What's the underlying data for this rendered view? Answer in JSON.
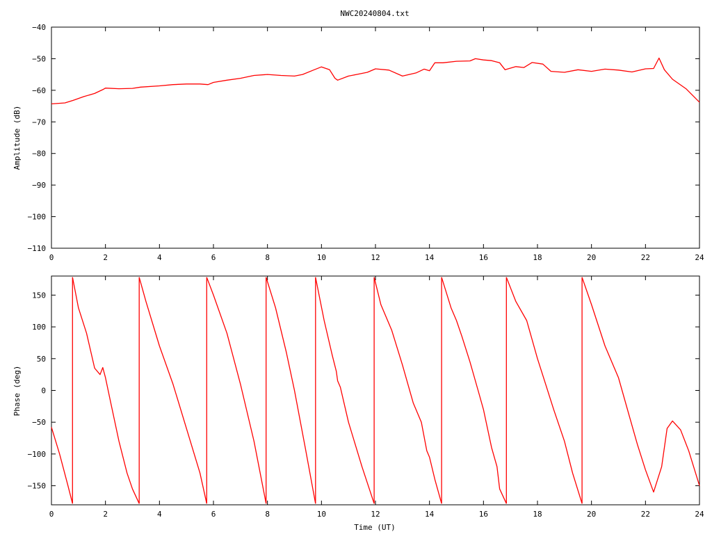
{
  "page": {
    "title": "NWC20240804.txt"
  },
  "chart_data": [
    {
      "type": "line",
      "title": "NWC20240804.txt",
      "xlabel": "",
      "ylabel": "Amplitude (dB)",
      "xlim": [
        0,
        24
      ],
      "ylim": [
        -110,
        -40
      ],
      "xticks": [
        0,
        2,
        4,
        6,
        8,
        10,
        12,
        14,
        16,
        18,
        20,
        22,
        24
      ],
      "yticks": [
        -40,
        -50,
        -60,
        -70,
        -80,
        -90,
        -100,
        -110
      ],
      "ytick_labels": [
        "−40",
        "−50",
        "−60",
        "−70",
        "−80",
        "−90",
        "−100",
        "−110"
      ],
      "grid": false,
      "color": "#ff0000",
      "series": [
        {
          "x": [
            0,
            0.5,
            0.8,
            1.2,
            1.6,
            1.9,
            2.0,
            2.5,
            3.0,
            3.3,
            4.0,
            4.5,
            5.0,
            5.5,
            5.8,
            6.0,
            6.5,
            7.0,
            7.5,
            8.0,
            8.5,
            9.0,
            9.3,
            9.7,
            10.0,
            10.3,
            10.5,
            10.6,
            11.0,
            11.3,
            11.7,
            12.0,
            12.5,
            13.0,
            13.5,
            13.8,
            14.0,
            14.2,
            14.5,
            15.0,
            15.5,
            15.7,
            16.0,
            16.3,
            16.6,
            16.8,
            17.2,
            17.5,
            17.8,
            18.2,
            18.5,
            19.0,
            19.5,
            20.0,
            20.5,
            21.0,
            21.5,
            22.0,
            22.3,
            22.5,
            22.7,
            23.0,
            23.5,
            24.0
          ],
          "y": [
            -64.3,
            -64.0,
            -63.2,
            -62.0,
            -61.0,
            -59.8,
            -59.3,
            -59.5,
            -59.4,
            -59.0,
            -58.6,
            -58.2,
            -58.0,
            -58.0,
            -58.2,
            -57.5,
            -56.8,
            -56.2,
            -55.3,
            -55.0,
            -55.3,
            -55.5,
            -55.0,
            -53.6,
            -52.6,
            -53.5,
            -56.2,
            -56.8,
            -55.5,
            -55.0,
            -54.3,
            -53.2,
            -53.6,
            -55.5,
            -54.5,
            -53.3,
            -53.8,
            -51.3,
            -51.3,
            -50.8,
            -50.7,
            -50.0,
            -50.4,
            -50.6,
            -51.3,
            -53.5,
            -52.5,
            -52.8,
            -51.2,
            -51.7,
            -54.0,
            -54.3,
            -53.5,
            -54.0,
            -53.3,
            -53.6,
            -54.2,
            -53.2,
            -53.1,
            -49.8,
            -53.5,
            -56.5,
            -59.5,
            -63.8
          ]
        }
      ]
    },
    {
      "type": "line",
      "title": "",
      "xlabel": "Time (UT)",
      "ylabel": "Phase (deg)",
      "xlim": [
        0,
        24
      ],
      "ylim": [
        -180,
        180
      ],
      "xticks": [
        0,
        2,
        4,
        6,
        8,
        10,
        12,
        14,
        16,
        18,
        20,
        22,
        24
      ],
      "yticks": [
        150,
        100,
        50,
        0,
        -50,
        -100,
        -150
      ],
      "ytick_labels": [
        "150",
        "100",
        "50",
        "0",
        "−50",
        "−100",
        "−150"
      ],
      "grid": false,
      "color": "#ff0000",
      "segments": [
        {
          "x": [
            0,
            0.3,
            0.6,
            0.78
          ],
          "y": [
            -58,
            -100,
            -148,
            -178
          ]
        },
        {
          "x": [
            0.78,
            0.78
          ],
          "y": [
            -178,
            178
          ]
        },
        {
          "x": [
            0.78,
            1.0,
            1.3,
            1.6,
            1.8,
            1.9,
            2.0,
            2.2,
            2.5,
            2.8,
            3.0,
            3.25
          ],
          "y": [
            178,
            130,
            90,
            35,
            25,
            36,
            20,
            -20,
            -80,
            -130,
            -155,
            -178
          ]
        },
        {
          "x": [
            3.25,
            3.25
          ],
          "y": [
            -178,
            178
          ]
        },
        {
          "x": [
            3.25,
            3.5,
            4.0,
            4.5,
            5.0,
            5.5,
            5.75
          ],
          "y": [
            178,
            140,
            70,
            10,
            -60,
            -130,
            -178
          ]
        },
        {
          "x": [
            5.75,
            5.75
          ],
          "y": [
            -178,
            178
          ]
        },
        {
          "x": [
            5.75,
            6.0,
            6.5,
            7.0,
            7.5,
            7.95
          ],
          "y": [
            178,
            150,
            90,
            10,
            -80,
            -178
          ]
        },
        {
          "x": [
            7.95,
            7.95
          ],
          "y": [
            -178,
            178
          ]
        },
        {
          "x": [
            7.95,
            8.3,
            8.7,
            9.0,
            9.4,
            9.78
          ],
          "y": [
            178,
            130,
            60,
            0,
            -90,
            -178
          ]
        },
        {
          "x": [
            9.78,
            9.78
          ],
          "y": [
            -178,
            178
          ]
        },
        {
          "x": [
            9.78,
            10.1,
            10.4,
            10.55,
            10.6,
            10.7,
            11.0,
            11.5,
            11.95
          ],
          "y": [
            178,
            110,
            55,
            30,
            15,
            5,
            -50,
            -120,
            -178
          ]
        },
        {
          "x": [
            11.95,
            11.95
          ],
          "y": [
            -178,
            178
          ]
        },
        {
          "x": [
            11.95,
            12.2,
            12.6,
            13.0,
            13.4,
            13.7,
            13.9,
            14.0,
            14.2,
            14.45
          ],
          "y": [
            178,
            135,
            95,
            40,
            -20,
            -50,
            -95,
            -105,
            -140,
            -178
          ]
        },
        {
          "x": [
            14.45,
            14.45
          ],
          "y": [
            -178,
            178
          ]
        },
        {
          "x": [
            14.45,
            14.8,
            15.0,
            15.2,
            15.5,
            15.8,
            16.0,
            16.3,
            16.5,
            16.6,
            16.85
          ],
          "y": [
            178,
            130,
            110,
            85,
            45,
            0,
            -30,
            -90,
            -120,
            -155,
            -178
          ]
        },
        {
          "x": [
            16.85,
            16.85
          ],
          "y": [
            -178,
            178
          ]
        },
        {
          "x": [
            16.85,
            17.2,
            17.6,
            18.0,
            18.3,
            18.6,
            19.0,
            19.3,
            19.65
          ],
          "y": [
            178,
            140,
            110,
            50,
            10,
            -30,
            -80,
            -130,
            -178
          ]
        },
        {
          "x": [
            19.65,
            19.65
          ],
          "y": [
            -178,
            178
          ]
        },
        {
          "x": [
            19.65,
            20.0,
            20.5,
            21.0,
            21.4,
            21.7,
            22.0,
            22.3,
            22.6,
            22.8,
            23.0,
            23.3,
            23.6,
            24.0
          ],
          "y": [
            178,
            135,
            70,
            20,
            -40,
            -85,
            -125,
            -160,
            -120,
            -60,
            -48,
            -62,
            -95,
            -150
          ]
        }
      ]
    }
  ]
}
